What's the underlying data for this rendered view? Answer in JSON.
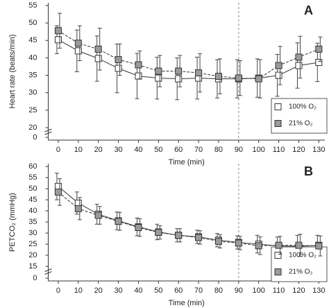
{
  "chart_data": [
    {
      "type": "line",
      "panel_label": "A",
      "ylabel": "Heart rate (beats/min)",
      "xlabel": "Time (min)",
      "x": [
        0,
        10,
        20,
        30,
        40,
        50,
        60,
        70,
        80,
        90,
        100,
        110,
        120,
        130
      ],
      "xlim": [
        -5,
        133
      ],
      "xticks": [
        0,
        10,
        20,
        30,
        40,
        50,
        60,
        70,
        80,
        90,
        100,
        110,
        120,
        130
      ],
      "ylim": [
        0,
        55
      ],
      "yticks": [
        0,
        20,
        25,
        30,
        35,
        40,
        45,
        50,
        55
      ],
      "axis_break": [
        0,
        20
      ],
      "vline": 90,
      "legend": "lower right",
      "series": [
        {
          "name": "100% O₂",
          "color": "#ffffff",
          "values": [
            45.2,
            42,
            39.8,
            37,
            34.8,
            34.2,
            34.0,
            34.2,
            34.0,
            34.0,
            34.2,
            35,
            37.8,
            38.7
          ],
          "errors": [
            4,
            6,
            6.5,
            7,
            6.5,
            6,
            6,
            6,
            5.5,
            5.5,
            5.5,
            6,
            6.5,
            5.5
          ]
        },
        {
          "name": "21% O₂",
          "color": "#9a9a9a",
          "values": [
            47.8,
            44.2,
            42.5,
            39.5,
            38.0,
            36.2,
            36.2,
            35.7,
            34.7,
            34.2,
            34.0,
            37.8,
            40.2,
            42.5
          ],
          "errors": [
            5,
            5,
            6,
            4.5,
            4,
            4.5,
            4.5,
            5.5,
            5,
            5,
            5.5,
            5.5,
            6,
            3.5
          ]
        }
      ]
    },
    {
      "type": "line",
      "panel_label": "B",
      "ylabel": "PETCO₂ (mmHg)",
      "xlabel": "Time (min)",
      "x": [
        0,
        10,
        20,
        30,
        40,
        50,
        60,
        70,
        80,
        90,
        100,
        110,
        120,
        130
      ],
      "xlim": [
        -5,
        133
      ],
      "xticks": [
        0,
        10,
        20,
        30,
        40,
        50,
        60,
        70,
        80,
        90,
        100,
        110,
        120,
        130
      ],
      "ylim": [
        0,
        60
      ],
      "yticks": [
        0,
        15,
        20,
        25,
        30,
        35,
        40,
        45,
        50,
        55,
        60
      ],
      "axis_break": [
        0,
        15
      ],
      "vline": 90,
      "legend": "lower right",
      "series": [
        {
          "name": "100% O₂",
          "color": "#ffffff",
          "values": [
            51,
            43.5,
            38.5,
            35.5,
            32.8,
            30.5,
            29,
            28.3,
            26.8,
            25.8,
            25,
            24.2,
            24,
            24.5
          ],
          "errors": [
            6,
            5,
            4.5,
            4,
            4,
            3.5,
            3,
            3,
            3,
            3,
            4,
            4,
            5,
            4.5
          ]
        },
        {
          "name": "21% O₂",
          "color": "#9a9a9a",
          "values": [
            48.5,
            41,
            38,
            35.3,
            32.5,
            30.3,
            29,
            28,
            26.3,
            25.5,
            24.3,
            24.5,
            24.5,
            24.2
          ],
          "errors": [
            6,
            5,
            4,
            4,
            4,
            3,
            3,
            3,
            3,
            3,
            4,
            4,
            5,
            4.5
          ]
        }
      ]
    }
  ]
}
